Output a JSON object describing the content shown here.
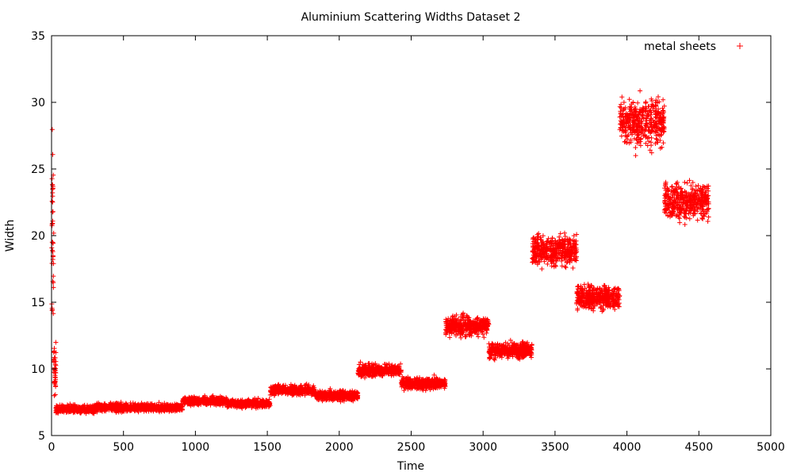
{
  "chart_data": {
    "type": "scatter",
    "title": "Aluminium Scattering Widths Dataset 2",
    "xlabel": "Time",
    "ylabel": "Width",
    "xlim": [
      0,
      5000
    ],
    "ylim": [
      5,
      35
    ],
    "x_ticks": [
      "0",
      "500",
      "1000",
      "1500",
      "2000",
      "2500",
      "3000",
      "3500",
      "4000",
      "4500",
      "5000"
    ],
    "y_ticks": [
      "5",
      "10",
      "15",
      "20",
      "25",
      "30",
      "35"
    ],
    "grid": false,
    "legend_position": "top-right",
    "marker": "+",
    "series": [
      {
        "name": "metal sheets",
        "color": "#ff0000",
        "segments": [
          {
            "x_start": 0,
            "x_end": 15,
            "y_mean": 20.0,
            "y_spread": 10.0
          },
          {
            "x_start": 15,
            "x_end": 30,
            "y_mean": 10.0,
            "y_spread": 2.5
          },
          {
            "x_start": 30,
            "x_end": 310,
            "y_mean": 7.0,
            "y_spread": 0.4
          },
          {
            "x_start": 310,
            "x_end": 910,
            "y_mean": 7.1,
            "y_spread": 0.4
          },
          {
            "x_start": 910,
            "x_end": 1220,
            "y_mean": 7.6,
            "y_spread": 0.4
          },
          {
            "x_start": 1220,
            "x_end": 1520,
            "y_mean": 7.4,
            "y_spread": 0.4
          },
          {
            "x_start": 1520,
            "x_end": 1830,
            "y_mean": 8.4,
            "y_spread": 0.5
          },
          {
            "x_start": 1830,
            "x_end": 2130,
            "y_mean": 8.0,
            "y_spread": 0.5
          },
          {
            "x_start": 2130,
            "x_end": 2430,
            "y_mean": 9.9,
            "y_spread": 0.6
          },
          {
            "x_start": 2430,
            "x_end": 2740,
            "y_mean": 8.9,
            "y_spread": 0.6
          },
          {
            "x_start": 2740,
            "x_end": 3040,
            "y_mean": 13.2,
            "y_spread": 1.0
          },
          {
            "x_start": 3040,
            "x_end": 3340,
            "y_mean": 11.4,
            "y_spread": 0.8
          },
          {
            "x_start": 3340,
            "x_end": 3650,
            "y_mean": 18.9,
            "y_spread": 1.6
          },
          {
            "x_start": 3650,
            "x_end": 3950,
            "y_mean": 15.4,
            "y_spread": 1.2
          },
          {
            "x_start": 3950,
            "x_end": 4260,
            "y_mean": 28.5,
            "y_spread": 2.5
          },
          {
            "x_start": 4260,
            "x_end": 4570,
            "y_mean": 22.6,
            "y_spread": 1.9
          }
        ]
      }
    ]
  }
}
